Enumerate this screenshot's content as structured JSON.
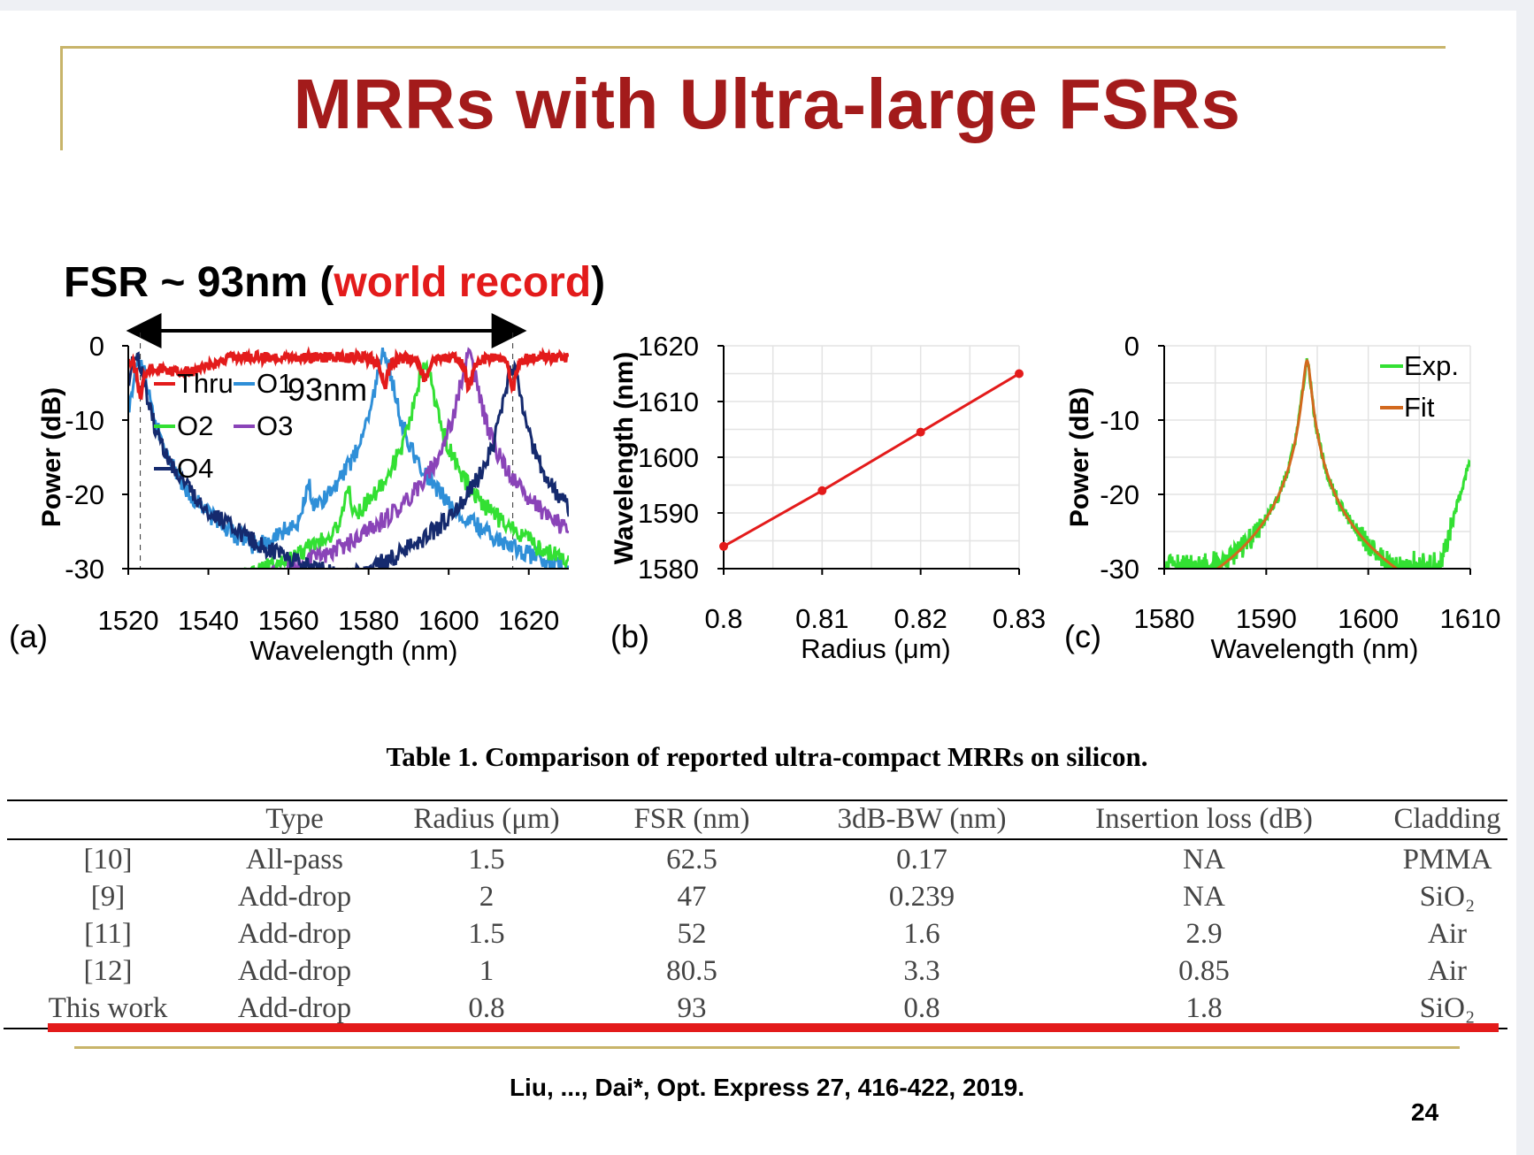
{
  "slide": {
    "title": "MRRs with Ultra-large FSRs",
    "fsr_label_prefix": "FSR ~ 93nm (",
    "fsr_label_highlight": "world record",
    "fsr_label_suffix": ")",
    "citation": "Liu, ..., Dai*, Opt. Express 27, 416-422, 2019.",
    "page_number": "24",
    "colors": {
      "title": "#a31b1b",
      "highlight": "#e31b1b",
      "frame": "#c8b46a"
    }
  },
  "chart_data": [
    {
      "type": "line",
      "panel_label": "(a)",
      "xlabel": "Wavelength (nm)",
      "ylabel": "Power (dB)",
      "xlim": [
        1520,
        1630
      ],
      "ylim": [
        -30,
        0
      ],
      "x_ticks": [
        "1520",
        "1540",
        "1560",
        "1580",
        "1600",
        "1620"
      ],
      "y_ticks": [
        "0",
        "-10",
        "-20",
        "-30"
      ],
      "annotation": "93nm",
      "fsr_arrow": [
        1523,
        1616
      ],
      "series": [
        {
          "name": "Thru",
          "color": "#e31b1b",
          "dips": [
            {
              "x": 1523,
              "depth": -5
            },
            {
              "x": 1584,
              "depth": -4
            },
            {
              "x": 1594,
              "depth": -3
            },
            {
              "x": 1605,
              "depth": -4
            },
            {
              "x": 1616,
              "depth": -4
            }
          ]
        },
        {
          "name": "O1",
          "color": "#2f8fd8",
          "peaks": [
            {
              "x": 1523,
              "peak": -2
            },
            {
              "x": 1565,
              "peak": -19
            },
            {
              "x": 1584,
              "peak": -1
            }
          ]
        },
        {
          "name": "O2",
          "color": "#33e033",
          "peaks": [
            {
              "x": 1575,
              "peak": -20
            },
            {
              "x": 1594,
              "peak": -2
            }
          ]
        },
        {
          "name": "O3",
          "color": "#8a44b8",
          "peaks": [
            {
              "x": 1605,
              "peak": -1
            }
          ]
        },
        {
          "name": "O4",
          "color": "#152a6e",
          "peaks": [
            {
              "x": 1522,
              "peak": -1
            },
            {
              "x": 1616,
              "peak": -3
            }
          ]
        }
      ]
    },
    {
      "type": "line",
      "panel_label": "(b)",
      "xlabel": "Radius (μm)",
      "ylabel": "Wavelength (nm)",
      "xlim": [
        0.8,
        0.83
      ],
      "ylim": [
        1580,
        1620
      ],
      "x_ticks": [
        "0.8",
        "0.81",
        "0.82",
        "0.83"
      ],
      "y_ticks": [
        "1620",
        "1610",
        "1600",
        "1590",
        "1580"
      ],
      "grid": true,
      "series": [
        {
          "color": "#e31b1b",
          "x": [
            0.8,
            0.81,
            0.82,
            0.83
          ],
          "y": [
            1584,
            1594,
            1604.5,
            1615
          ]
        }
      ]
    },
    {
      "type": "line",
      "panel_label": "(c)",
      "xlabel": "Wavelength (nm)",
      "ylabel": "Power (dB)",
      "xlim": [
        1580,
        1610
      ],
      "ylim": [
        -30,
        0
      ],
      "x_ticks": [
        "1580",
        "1590",
        "1600",
        "1610"
      ],
      "y_ticks": [
        "0",
        "-10",
        "-20",
        "-30"
      ],
      "grid": true,
      "legend_position": "top-right",
      "resonance_nm": 1594,
      "series": [
        {
          "name": "Exp.",
          "color": "#33e033"
        },
        {
          "name": "Fit",
          "color": "#d2691e"
        }
      ]
    }
  ],
  "table": {
    "caption": "Table 1. Comparison of reported ultra-compact MRRs on silicon.",
    "headers": [
      "",
      "Type",
      "Radius (μm)",
      "FSR (nm)",
      "3dB-BW (nm)",
      "Insertion loss (dB)",
      "Cladding"
    ],
    "rows": [
      [
        "[10]",
        "All-pass",
        "1.5",
        "62.5",
        "0.17",
        "NA",
        "PMMA"
      ],
      [
        "[9]",
        "Add-drop",
        "2",
        "47",
        "0.239",
        "NA",
        "SiO₂"
      ],
      [
        "[11]",
        "Add-drop",
        "1.5",
        "52",
        "1.6",
        "2.9",
        "Air"
      ],
      [
        "[12]",
        "Add-drop",
        "1",
        "80.5",
        "3.3",
        "0.85",
        "Air"
      ],
      [
        "This work",
        "Add-drop",
        "0.8",
        "93",
        "0.8",
        "1.8",
        "SiO₂"
      ]
    ]
  }
}
